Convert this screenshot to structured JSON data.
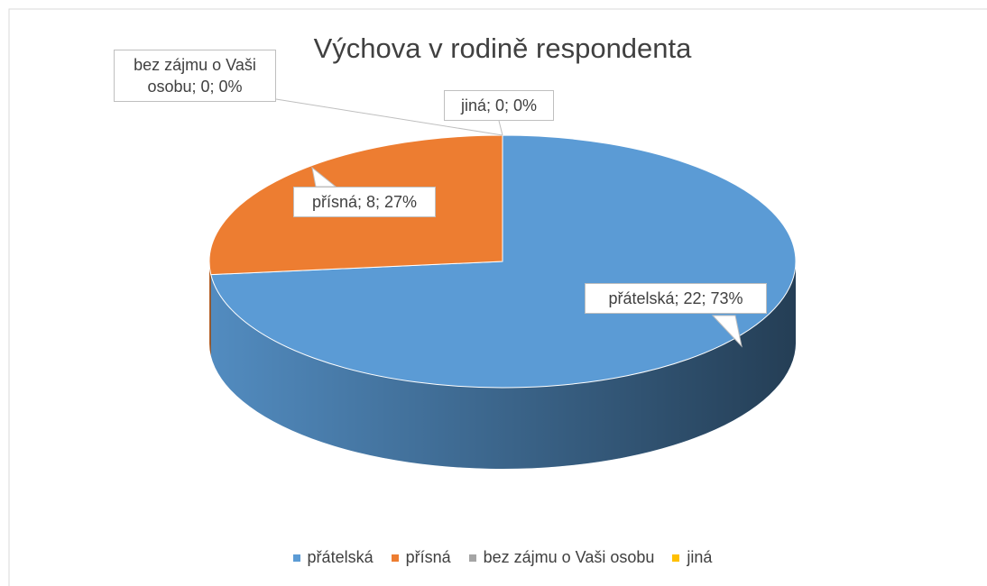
{
  "chart_data": {
    "type": "pie3d",
    "title": "Výchova v rodině respondenta",
    "categories": [
      "přátelská",
      "přísná",
      "bez zájmu o Vaši osobu",
      "jiná"
    ],
    "values": [
      22,
      8,
      0,
      0
    ],
    "value_labels": [
      "přátelská; 22; 73%",
      "přísná; 8; 27%",
      "bez zájmu o Vaši osobu; 0; 0%",
      "jiná; 0; 0%"
    ],
    "colors": [
      "#5b9bd5",
      "#ed7d31",
      "#a5a5a5",
      "#ffc000"
    ],
    "legend": "bottom"
  }
}
